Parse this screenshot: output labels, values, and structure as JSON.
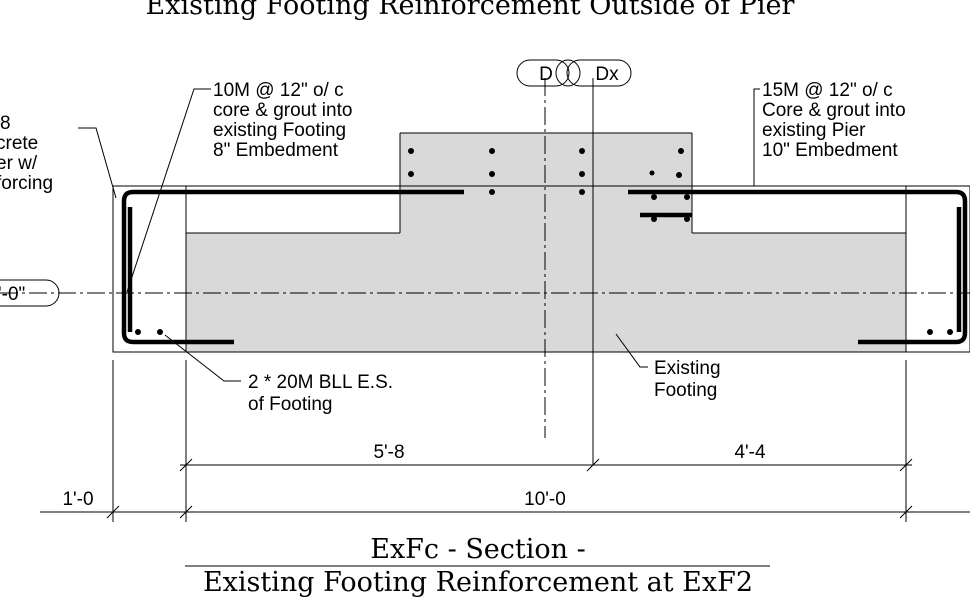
{
  "top_title": "Existing Footing Reinforcement Outside of Pier",
  "grid_bubble_left": "D",
  "grid_bubble_right": "Dx",
  "elevation_bubble": "'-0\"",
  "notes": {
    "left_bar": [
      "10M @  12\" o/ c",
      "core & grout into",
      "existing Footing",
      "8\" Embedment"
    ],
    "right_bar": [
      "15M @  12\" o/ c",
      "Core & grout into",
      "existing Pier",
      "10\" Embedment"
    ],
    "left_cut": [
      "8",
      "crete",
      "er w/",
      "forcing"
    ],
    "bottom_bars": [
      "2 * 20M BLL E.S.",
      "of Footing"
    ],
    "existing_footing": [
      "Existing",
      "Footing"
    ]
  },
  "dimensions": {
    "left_segment": "5'-8",
    "right_segment": "4'-4",
    "edge": "1'-0",
    "overall": "10'-0"
  },
  "section_title": "ExFc  - Section -",
  "section_subtitle": "Existing Footing Reinforcement at ExF2",
  "colors": {
    "concrete_fill": "#d9d9d9",
    "line": "#000000",
    "background": "#ffffff"
  }
}
